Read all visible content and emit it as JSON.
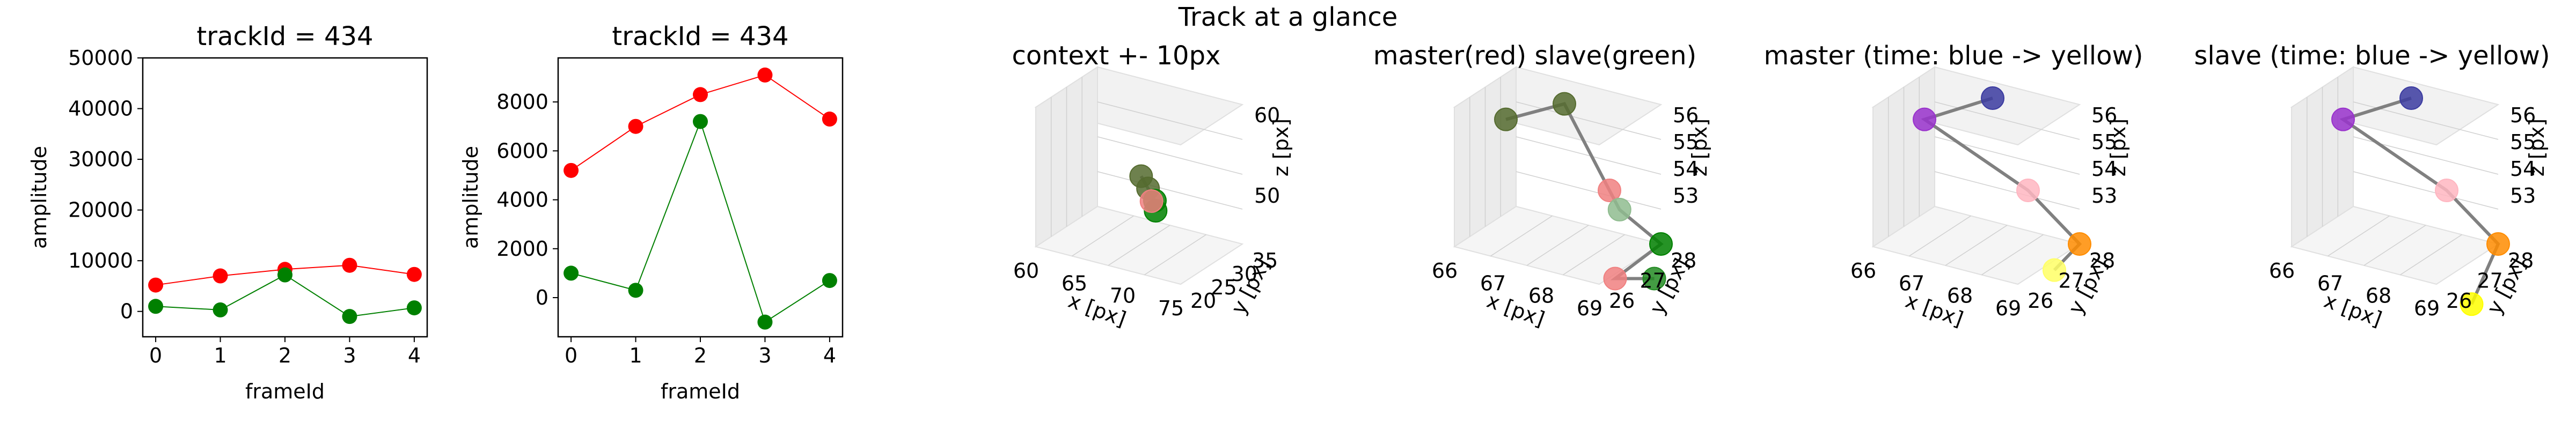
{
  "suptitle": "Track at a glance",
  "chart_data": [
    {
      "type": "line",
      "title": "trackId = 434",
      "xlabel": "frameId",
      "ylabel": "amplitude",
      "xlim": [
        -0.2,
        4.2
      ],
      "ylim": [
        -5000,
        50000
      ],
      "xticks": [
        0,
        1,
        2,
        3,
        4
      ],
      "yticks": [
        0,
        10000,
        20000,
        30000,
        40000,
        50000
      ],
      "x": [
        0,
        1,
        2,
        3,
        4
      ],
      "series": [
        {
          "color": "#ff0000",
          "values": [
            5200,
            7000,
            8300,
            9100,
            7300
          ]
        },
        {
          "color": "#008000",
          "values": [
            1000,
            300,
            7200,
            -1000,
            700
          ]
        }
      ]
    },
    {
      "type": "line",
      "title": "trackId = 434",
      "xlabel": "frameId",
      "ylabel": "amplitude",
      "xlim": [
        -0.2,
        4.2
      ],
      "ylim": [
        -1600,
        9800
      ],
      "xticks": [
        0,
        1,
        2,
        3,
        4
      ],
      "yticks": [
        0,
        2000,
        4000,
        6000,
        8000
      ],
      "x": [
        0,
        1,
        2,
        3,
        4
      ],
      "series": [
        {
          "color": "#ff0000",
          "values": [
            5200,
            7000,
            8300,
            9100,
            7300
          ]
        },
        {
          "color": "#008000",
          "values": [
            1000,
            300,
            7200,
            -1000,
            700
          ]
        }
      ]
    },
    {
      "type": "scatter3d",
      "title": "context +- 10px",
      "xlabel": "x [px]",
      "ylabel": "y [px]",
      "zlabel": "z [px]",
      "xticks": [
        "60",
        "65",
        "70",
        "75"
      ],
      "yticks": [
        "20",
        "25",
        "30",
        "35"
      ],
      "zticks": [
        "50",
        "60"
      ],
      "points": [
        {
          "x": 67.5,
          "y": 27.0,
          "z": 55.5,
          "color": "#556b2f"
        },
        {
          "x": 68.0,
          "y": 26.5,
          "z": 54.5,
          "color": "#556b2f"
        },
        {
          "x": 68.5,
          "y": 26.0,
          "z": 53.5,
          "color": "#008000"
        },
        {
          "x": 69.0,
          "y": 27.0,
          "z": 53.0,
          "color": "#008000"
        },
        {
          "x": 69.0,
          "y": 28.0,
          "z": 54.0,
          "color": "#f08080"
        }
      ]
    },
    {
      "type": "scatter3d",
      "title": "master(red) slave(green)",
      "xlabel": "x [px]",
      "ylabel": "y [px]",
      "zlabel": "z [px]",
      "xticks": [
        "66",
        "67",
        "68",
        "69"
      ],
      "yticks": [
        "26",
        "27",
        "28"
      ],
      "zticks": [
        "53",
        "54",
        "55",
        "56"
      ],
      "points": [
        {
          "x": 66.3,
          "y": 26.8,
          "z": 55.6,
          "color": "#556b2f"
        },
        {
          "x": 67.0,
          "y": 26.0,
          "z": 55.8,
          "color": "#556b2f"
        },
        {
          "x": 68.7,
          "y": 27.2,
          "z": 54.8,
          "color": "#f08080"
        },
        {
          "x": 69.1,
          "y": 27.5,
          "z": 54.6,
          "color": "#8fbc8f"
        },
        {
          "x": 69.0,
          "y": 26.0,
          "z": 53.0,
          "color": "#008000"
        },
        {
          "x": 69.2,
          "y": 27.8,
          "z": 53.1,
          "color": "#f08080"
        },
        {
          "x": 69.5,
          "y": 27.0,
          "z": 52.8,
          "color": "#228b22"
        }
      ]
    },
    {
      "type": "scatter3d",
      "title": "master (time: blue -> yellow)",
      "xlabel": "x [px]",
      "ylabel": "y [px]",
      "zlabel": "z [px]",
      "xticks": [
        "66",
        "67",
        "68",
        "69"
      ],
      "yticks": [
        "26",
        "27",
        "28"
      ],
      "zticks": [
        "53",
        "54",
        "55",
        "56"
      ],
      "points": [
        {
          "x": 67.2,
          "y": 26.0,
          "z": 56.0,
          "color": "#3b3ba0"
        },
        {
          "x": 66.3,
          "y": 26.8,
          "z": 55.6,
          "color": "#9932cc"
        },
        {
          "x": 68.7,
          "y": 27.2,
          "z": 54.8,
          "color": "#ffb6c1"
        },
        {
          "x": 69.0,
          "y": 26.0,
          "z": 53.0,
          "color": "#ff8c00"
        },
        {
          "x": 69.5,
          "y": 27.6,
          "z": 53.3,
          "color": "#ffff66"
        }
      ]
    },
    {
      "type": "scatter3d",
      "title": "slave (time: blue -> yellow)",
      "xlabel": "x [px]",
      "ylabel": "y [px]",
      "zlabel": "z [px]",
      "xticks": [
        "66",
        "67",
        "68",
        "69"
      ],
      "yticks": [
        "26",
        "27",
        "28"
      ],
      "zticks": [
        "53",
        "54",
        "55",
        "56"
      ],
      "points": [
        {
          "x": 67.2,
          "y": 26.0,
          "z": 56.0,
          "color": "#3b3ba0"
        },
        {
          "x": 66.3,
          "y": 26.8,
          "z": 55.6,
          "color": "#9932cc"
        },
        {
          "x": 68.7,
          "y": 27.2,
          "z": 54.8,
          "color": "#ffb6c1"
        },
        {
          "x": 69.0,
          "y": 26.0,
          "z": 53.0,
          "color": "#ff8c00"
        },
        {
          "x": 69.6,
          "y": 27.8,
          "z": 52.6,
          "color": "#ffff00"
        }
      ]
    }
  ]
}
